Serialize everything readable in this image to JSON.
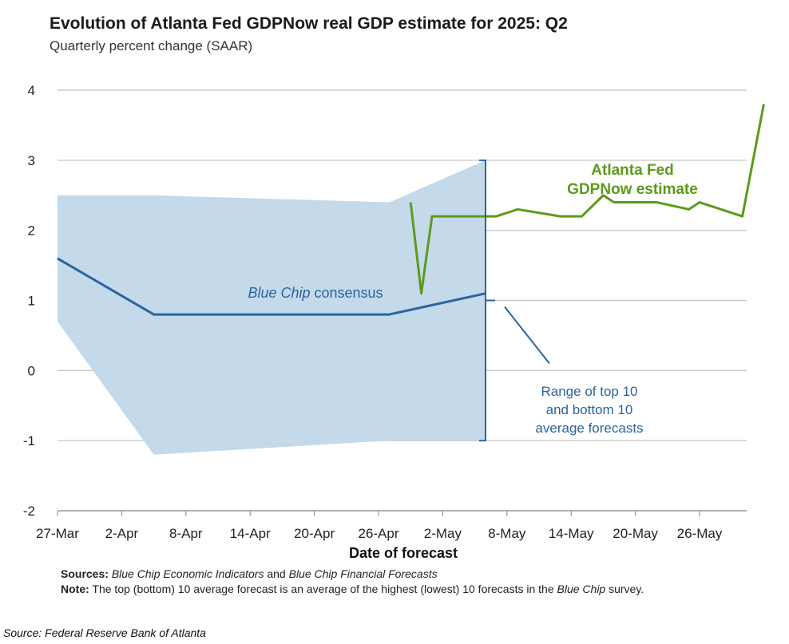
{
  "title": "Evolution of Atlanta Fed GDPNow real GDP estimate for 2025: Q2",
  "subtitle": "Quarterly percent change (SAAR)",
  "chart_data": {
    "type": "line",
    "title": "Evolution of Atlanta Fed GDPNow real GDP estimate for 2025: Q2",
    "subtitle": "Quarterly percent change (SAAR)",
    "xlabel": "Date of forecast",
    "ylabel": "",
    "ylim": [
      -2,
      4
    ],
    "yticks": [
      4,
      3,
      2,
      1,
      0,
      -1,
      -2
    ],
    "xtick_labels": [
      "27-Mar",
      "2-Apr",
      "8-Apr",
      "14-Apr",
      "20-Apr",
      "26-Apr",
      "2-May",
      "8-May",
      "14-May",
      "20-May",
      "26-May"
    ],
    "grid": "horizontal",
    "series": [
      {
        "name": "Atlanta Fed GDPNow estimate",
        "color": "#5c9a1b",
        "points": [
          [
            "2025-04-29",
            2.4
          ],
          [
            "2025-04-30",
            1.1
          ],
          [
            "2025-05-01",
            2.2
          ],
          [
            "2025-05-02",
            2.2
          ],
          [
            "2025-05-05",
            2.2
          ],
          [
            "2025-05-07",
            2.2
          ],
          [
            "2025-05-09",
            2.3
          ],
          [
            "2025-05-13",
            2.2
          ],
          [
            "2025-05-15",
            2.2
          ],
          [
            "2025-05-17",
            2.5
          ],
          [
            "2025-05-18",
            2.4
          ],
          [
            "2025-05-22",
            2.4
          ],
          [
            "2025-05-25",
            2.3
          ],
          [
            "2025-05-26",
            2.4
          ],
          [
            "2025-05-30",
            2.2
          ],
          [
            "2025-06-01",
            3.8
          ]
        ]
      },
      {
        "name": "Blue Chip consensus",
        "color": "#2b63a1",
        "points": [
          [
            "2025-03-27",
            1.6
          ],
          [
            "2025-04-05",
            0.8
          ],
          [
            "2025-04-27",
            0.8
          ],
          [
            "2025-05-06",
            1.1
          ]
        ]
      }
    ],
    "range_band": {
      "name": "Range of top 10 and bottom 10 average forecasts",
      "color": "#c4d9ea",
      "upper": [
        [
          "2025-03-27",
          2.5
        ],
        [
          "2025-04-05",
          2.5
        ],
        [
          "2025-04-27",
          2.4
        ],
        [
          "2025-05-06",
          3.0
        ]
      ],
      "lower": [
        [
          "2025-03-27",
          0.7
        ],
        [
          "2025-04-05",
          -1.2
        ],
        [
          "2025-04-27",
          -1.0
        ],
        [
          "2025-05-06",
          -1.0
        ]
      ]
    },
    "annotations": [
      {
        "text": "Atlanta Fed",
        "color": "#5c9a1b"
      },
      {
        "text": "GDPNow estimate",
        "color": "#5c9a1b"
      },
      {
        "text_italic": "Blue Chip",
        "text": " consensus",
        "color": "#2b63a1"
      },
      {
        "lines": [
          "Range of top 10",
          "and bottom 10",
          "average forecasts"
        ],
        "color": "#2b63a1"
      }
    ]
  },
  "notes": {
    "sources_label": "Sources:",
    "sources_text_1": "Blue Chip Economic Indicators",
    "sources_text_2": " and ",
    "sources_text_3": "Blue Chip Financial Forecasts",
    "note_label": "Note:",
    "note_text_1": " The top (bottom) 10 average forecast is an average of the highest (lowest) 10 forecasts in the ",
    "note_text_2": "Blue Chip",
    "note_text_3": " survey."
  },
  "source_line": "Source: Federal Reserve Bank of Atlanta"
}
